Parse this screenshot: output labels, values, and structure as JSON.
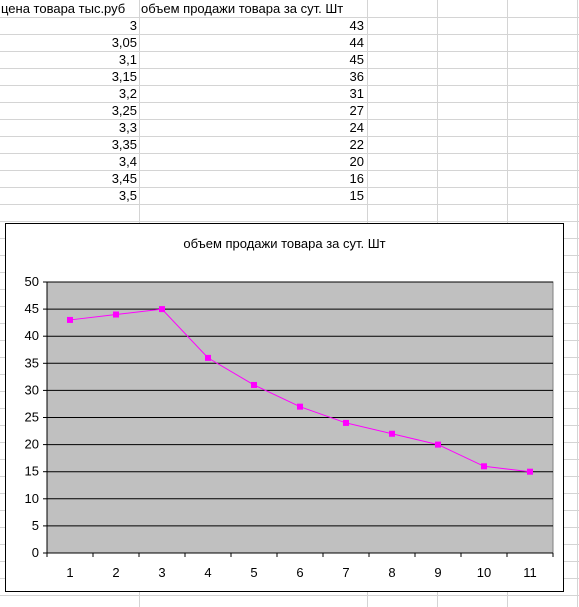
{
  "sheet": {
    "headers": {
      "col_a": "цена товара тыс.руб",
      "col_b": "объем продажи товара за сут. Шт"
    },
    "rows": [
      {
        "price": "3",
        "volume": "43"
      },
      {
        "price": "3,05",
        "volume": "44"
      },
      {
        "price": "3,1",
        "volume": "45"
      },
      {
        "price": "3,15",
        "volume": "36"
      },
      {
        "price": "3,2",
        "volume": "31"
      },
      {
        "price": "3,25",
        "volume": "27"
      },
      {
        "price": "3,3",
        "volume": "24"
      },
      {
        "price": "3,35",
        "volume": "22"
      },
      {
        "price": "3,4",
        "volume": "20"
      },
      {
        "price": "3,45",
        "volume": "16"
      },
      {
        "price": "3,5",
        "volume": "15"
      }
    ]
  },
  "chart_data": {
    "type": "line",
    "title": "объем продажи товара за сут. Шт",
    "x": [
      1,
      2,
      3,
      4,
      5,
      6,
      7,
      8,
      9,
      10,
      11
    ],
    "series": [
      {
        "values": [
          43,
          44,
          45,
          36,
          31,
          27,
          24,
          22,
          20,
          16,
          15
        ]
      }
    ],
    "ylim": [
      0,
      50
    ],
    "yticks": [
      0,
      5,
      10,
      15,
      20,
      25,
      30,
      35,
      40,
      45,
      50
    ],
    "grid": "horizontal",
    "plot_background": "#c0c0c0",
    "series_color": "#ff00ff",
    "legend": "none"
  }
}
